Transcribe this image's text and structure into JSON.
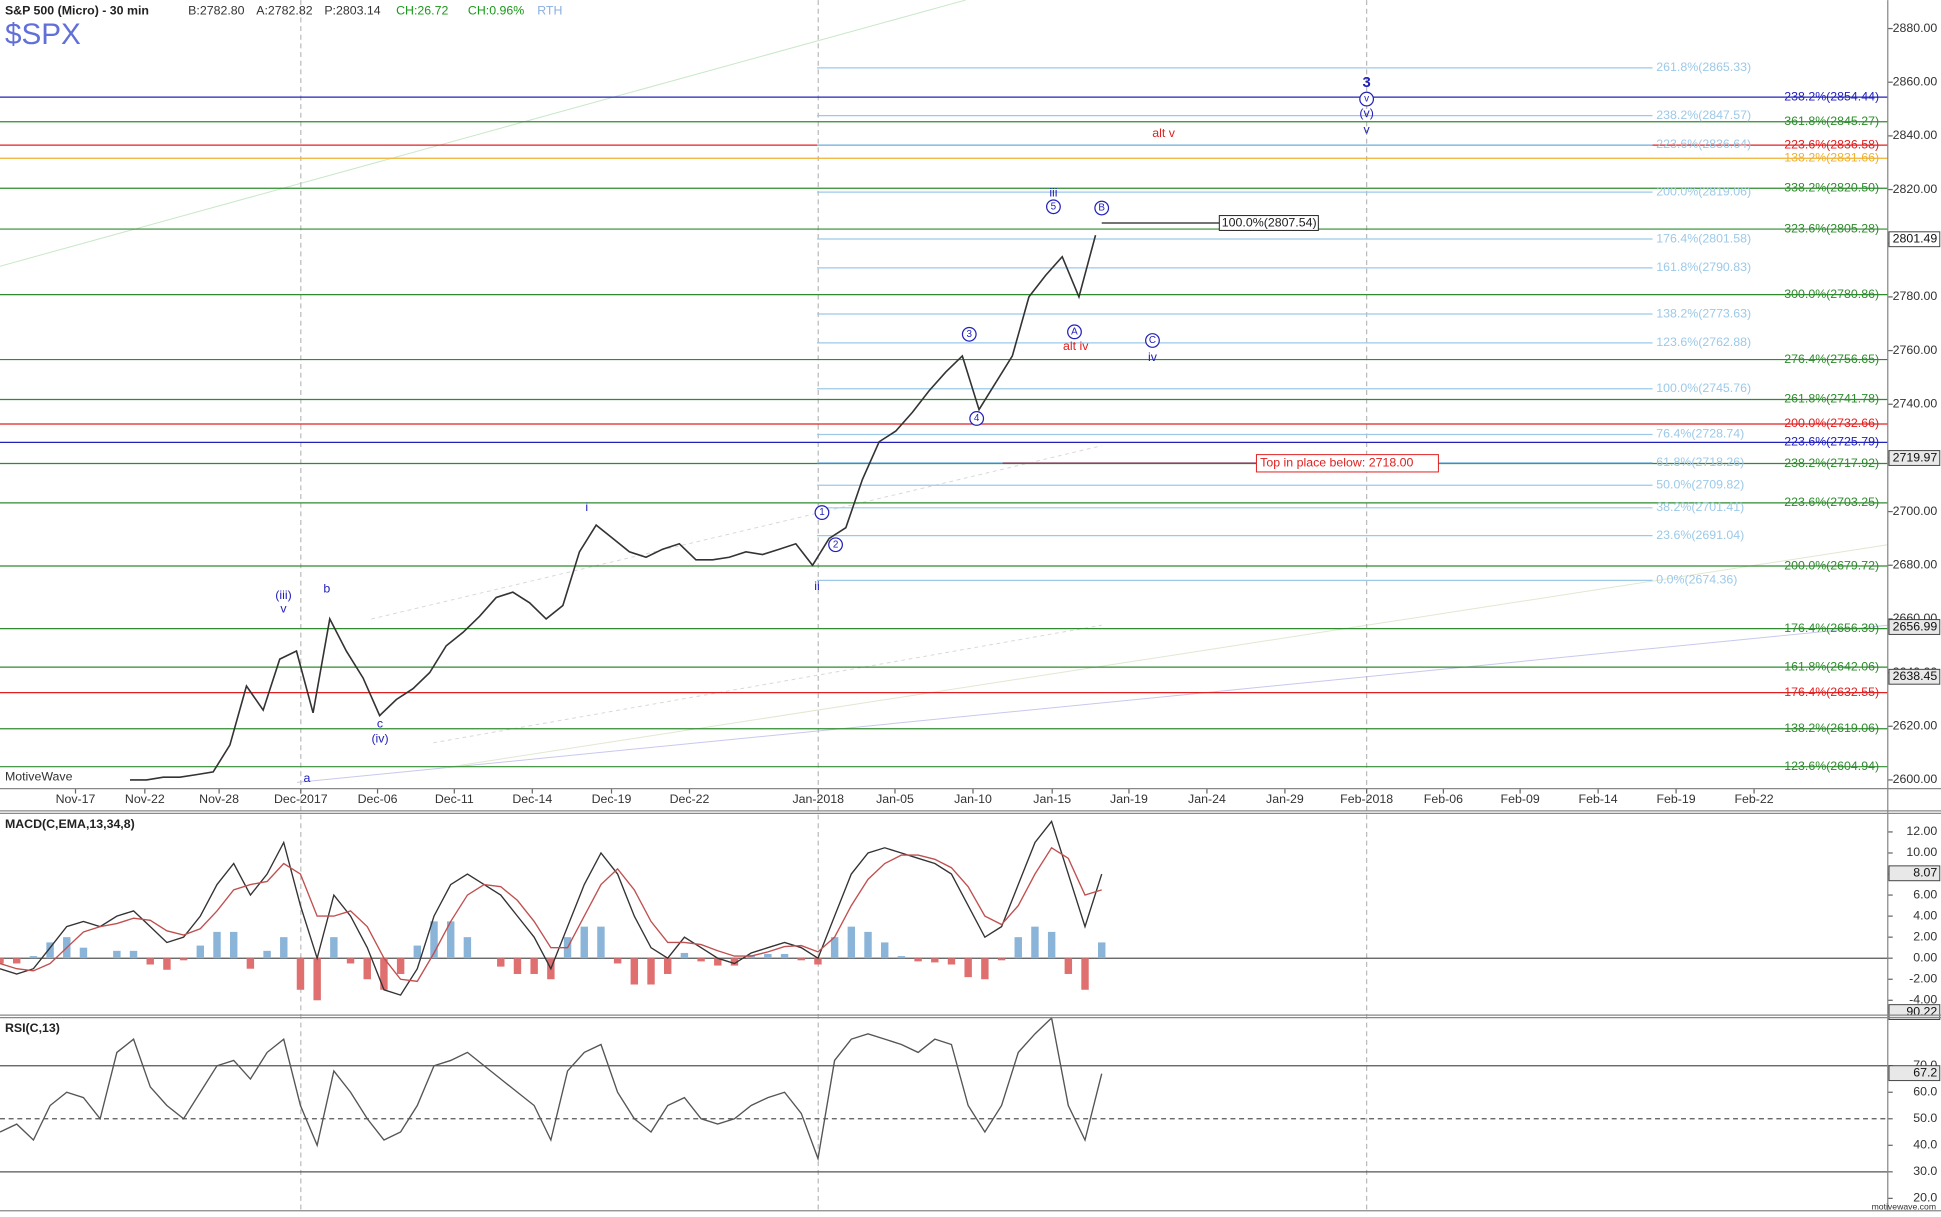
{
  "header": {
    "title": "S&P 500 (Micro) - 30 min",
    "bid": "B:2782.80",
    "ask": "A:2782.82",
    "price": "P:2803.14",
    "change": "CH:26.72",
    "change_pct": "CH:0.96%",
    "session": "RTH",
    "symbol": "$SPX",
    "brand": "MotiveWave",
    "site": "motivewave.com"
  },
  "chart_data": [
    {
      "type": "line",
      "color": "#333333",
      "values": [
        2600,
        2600,
        2601,
        2601,
        2602,
        2603,
        2613,
        2635,
        2626,
        2645,
        2648,
        2625,
        2660,
        2648,
        2638,
        2624,
        2630,
        2634,
        2640,
        2650,
        2655,
        2661,
        2668,
        2670,
        2666,
        2660,
        2665,
        2685,
        2695,
        2690,
        2685,
        2683,
        2686,
        2688,
        2682,
        2682,
        2683,
        2685,
        2684,
        2686,
        2688,
        2680,
        2690,
        2694,
        2712,
        2726,
        2730,
        2737,
        2745,
        2752,
        2758,
        2738,
        2748,
        2758,
        2780,
        2788,
        2795,
        2780,
        2803
      ],
      "ylim": [
        2600,
        2880
      ],
      "yticks": [
        {
          "value": 2600,
          "label": "2600.00"
        },
        {
          "value": 2620,
          "label": "2620.00"
        },
        {
          "value": 2640,
          "label": "2640.00"
        },
        {
          "value": 2660,
          "label": "2660.00"
        },
        {
          "value": 2680,
          "label": "2680.00"
        },
        {
          "value": 2700,
          "label": "2700.00"
        },
        {
          "value": 2720,
          "label": "2720.00"
        },
        {
          "value": 2740,
          "label": "2740.00"
        },
        {
          "value": 2760,
          "label": "2760.00"
        },
        {
          "value": 2780,
          "label": "2780.00"
        },
        {
          "value": 2800,
          "label": "2800.00"
        },
        {
          "value": 2820,
          "label": "2820.00"
        },
        {
          "value": 2840,
          "label": "2840.00"
        },
        {
          "value": 2860,
          "label": "2860.00"
        },
        {
          "value": 2880,
          "label": "2880.00"
        }
      ],
      "price_badges": [
        2801.49,
        2719.97,
        2656.99,
        2638.45
      ],
      "date_labels": [
        "Nov-17",
        "Nov-22",
        "Nov-28",
        "Dec-2017",
        "Dec-06",
        "Dec-11",
        "Dec-14",
        "Dec-19",
        "Dec-22",
        "Jan-2018",
        "Jan-05",
        "Jan-10",
        "Jan-15",
        "Jan-19",
        "Jan-24",
        "Jan-29",
        "Feb-2018",
        "Feb-06",
        "Feb-09",
        "Feb-14",
        "Feb-19",
        "Feb-22"
      ],
      "levels": [
        {
          "label": "238.2%(2854.44)",
          "value": 2854.44,
          "color": "#2222bb"
        },
        {
          "label": "361.8%(2845.27)",
          "value": 2845.27,
          "color": "#2e8b2e"
        },
        {
          "label": "223.6%(2836.58)",
          "value": 2836.58,
          "color": "#e02020"
        },
        {
          "label": "138.2%(2831.66)",
          "value": 2831.66,
          "color": "#f0b030"
        },
        {
          "label": "338.2%(2820.50)",
          "value": 2820.5,
          "color": "#2e8b2e"
        },
        {
          "label": "323.6%(2805.28)",
          "value": 2805.28,
          "color": "#2e8b2e"
        },
        {
          "label": "300.0%(2780.86)",
          "value": 2780.86,
          "color": "#2e8b2e"
        },
        {
          "label": "276.4%(2756.65)",
          "value": 2756.65,
          "color": "#2e8b2e"
        },
        {
          "label": "261.8%(2741.78)",
          "value": 2741.78,
          "color": "#2e8b2e"
        },
        {
          "label": "200.0%(2732.66)",
          "value": 2732.66,
          "color": "#e02020"
        },
        {
          "label": "223.6%(2725.79)",
          "value": 2725.79,
          "color": "#2222bb"
        },
        {
          "label": "238.2%(2717.92)",
          "value": 2717.92,
          "color": "#2e8b2e"
        },
        {
          "label": "223.6%(2703.25)",
          "value": 2703.25,
          "color": "#2e8b2e"
        },
        {
          "label": "200.0%(2679.72)",
          "value": 2679.72,
          "color": "#2e8b2e"
        },
        {
          "label": "176.4%(2656.39)",
          "value": 2656.39,
          "color": "#2e8b2e"
        },
        {
          "label": "161.8%(2642.06)",
          "value": 2642.06,
          "color": "#2e8b2e"
        },
        {
          "label": "176.4%(2632.55)",
          "value": 2632.55,
          "color": "#e02020"
        },
        {
          "label": "138.2%(2619.06)",
          "value": 2619.06,
          "color": "#2e8b2e"
        },
        {
          "label": "123.6%(2604.94)",
          "value": 2604.94,
          "color": "#2e8b2e"
        },
        {
          "label": "261.8%(2865.33)",
          "value": 2865.33,
          "color": "#9cc9e8"
        },
        {
          "label": "238.2%(2847.57)",
          "value": 2847.57,
          "color": "#9cc9e8"
        },
        {
          "label": "223.6%(2836.64)",
          "value": 2836.64,
          "color": "#9cc9e8"
        },
        {
          "label": "200.0%(2819.06)",
          "value": 2819.06,
          "color": "#9cc9e8"
        },
        {
          "label": "176.4%(2801.58)",
          "value": 2801.58,
          "color": "#9cc9e8"
        },
        {
          "label": "161.8%(2790.83)",
          "value": 2790.83,
          "color": "#9cc9e8"
        },
        {
          "label": "138.2%(2773.63)",
          "value": 2773.63,
          "color": "#9cc9e8"
        },
        {
          "label": "123.6%(2762.88)",
          "value": 2762.88,
          "color": "#9cc9e8"
        },
        {
          "label": "100.0%(2745.76)",
          "value": 2745.76,
          "color": "#9cc9e8"
        },
        {
          "label": "76.4%(2728.74)",
          "value": 2728.74,
          "color": "#9cc9e8"
        },
        {
          "label": "61.8%(2718.26)",
          "value": 2718.26,
          "color": "#9cc9e8"
        },
        {
          "label": "50.0%(2709.82)",
          "value": 2709.82,
          "color": "#9cc9e8"
        },
        {
          "label": "38.2%(2701.41)",
          "value": 2701.41,
          "color": "#9cc9e8"
        },
        {
          "label": "23.6%(2691.04)",
          "value": 2691.04,
          "color": "#9cc9e8"
        },
        {
          "label": "0.0%(2674.36)",
          "value": 2674.36,
          "color": "#9cc9e8"
        }
      ],
      "annotations": [
        {
          "label": "100.0%(2807.54)",
          "value": 2807.54,
          "color": "#222222"
        },
        {
          "label": "Top in place below: 2718.00",
          "value": 2718.0,
          "color": "#e02020"
        }
      ],
      "wave_labels": [
        {
          "label": "(iii)",
          "color": "#2222bb"
        },
        {
          "label": "v",
          "color": "#2222bb"
        },
        {
          "label": "b",
          "color": "#2222bb"
        },
        {
          "label": "a",
          "color": "#2222bb"
        },
        {
          "label": "c",
          "color": "#2222bb"
        },
        {
          "label": "(iv)",
          "color": "#2222bb"
        },
        {
          "label": "i",
          "color": "#2222bb"
        },
        {
          "label": "ii",
          "color": "#2222bb"
        },
        {
          "label": "1",
          "color": "#2222bb",
          "circled": true
        },
        {
          "label": "2",
          "color": "#2222bb",
          "circled": true
        },
        {
          "label": "3",
          "color": "#2222bb",
          "circled": true
        },
        {
          "label": "4",
          "color": "#2222bb",
          "circled": true
        },
        {
          "label": "iii",
          "color": "#2222bb"
        },
        {
          "label": "5",
          "color": "#2222bb",
          "circled": true
        },
        {
          "label": "A",
          "color": "#2222bb",
          "circled": true
        },
        {
          "label": "alt iv",
          "color": "#e02020"
        },
        {
          "label": "B",
          "color": "#2222bb",
          "circled": true
        },
        {
          "label": "C",
          "color": "#2222bb",
          "circled": true
        },
        {
          "label": "iv",
          "color": "#2222bb"
        },
        {
          "label": "3",
          "color": "#2222bb",
          "bold": true
        },
        {
          "label": "v",
          "color": "#2222bb",
          "circled": true
        },
        {
          "label": "(v)",
          "color": "#2222bb"
        },
        {
          "label": "v",
          "color": "#2222bb"
        },
        {
          "label": "alt v",
          "color": "#e02020"
        }
      ]
    },
    {
      "type": "macd",
      "title": "MACD(C,EMA,13,34,8)",
      "series": [
        {
          "color": "#333333",
          "values": [
            -1,
            -1.5,
            -1,
            1,
            3,
            3.5,
            3,
            4,
            4.5,
            3,
            1.5,
            2,
            4,
            7,
            9,
            6,
            8,
            11,
            5,
            0,
            6,
            4,
            1,
            -3,
            -3.5,
            -1,
            4,
            7,
            8,
            7,
            6,
            4,
            2,
            -1,
            3,
            7,
            10,
            8,
            4,
            1,
            0,
            2,
            1,
            0,
            -0.5,
            0.5,
            1,
            1.5,
            1,
            0,
            4,
            8,
            10,
            10.5,
            10,
            9.5,
            9,
            8,
            5,
            2,
            3,
            7,
            11,
            13,
            8,
            3,
            8
          ]
        },
        {
          "color": "#c05050",
          "values": [
            -0.5,
            -1,
            -1.2,
            -0.5,
            1,
            2.5,
            3,
            3.3,
            3.8,
            3.6,
            2.6,
            2.2,
            2.8,
            4.5,
            6.5,
            7,
            7.3,
            9,
            8,
            4,
            4,
            4.5,
            3,
            0,
            -2,
            -2.2,
            0.5,
            3.5,
            6,
            7,
            6.8,
            5.5,
            3.5,
            1,
            1,
            4,
            7,
            8.5,
            6.5,
            3.5,
            1.5,
            1.5,
            1.3,
            0.7,
            0.2,
            0.2,
            0.6,
            1.1,
            1.2,
            0.6,
            2,
            5,
            7.5,
            9,
            9.8,
            9.8,
            9.4,
            8.6,
            6.8,
            4,
            3.2,
            5,
            8,
            10.5,
            9.5,
            6,
            6.5
          ]
        }
      ],
      "histogram": {
        "positive_color": "#8ab4d8",
        "negative_color": "#e07070",
        "values": [
          -0.5,
          -0.5,
          0.2,
          1.5,
          2,
          1,
          0,
          0.7,
          0.7,
          -0.6,
          -1.1,
          -0.2,
          1.2,
          2.5,
          2.5,
          -1,
          0.7,
          2,
          -3,
          -4,
          2,
          -0.5,
          -2,
          -3,
          -1.5,
          1.2,
          3.5,
          3.5,
          2,
          0,
          -0.8,
          -1.5,
          -1.5,
          -2,
          2,
          3,
          3,
          -0.5,
          -2.5,
          -2.5,
          -1.5,
          0.5,
          -0.3,
          -0.7,
          -0.7,
          0.3,
          0.4,
          0.4,
          -0.2,
          -0.6,
          2,
          3,
          2.5,
          1.5,
          0.2,
          -0.3,
          -0.4,
          -0.6,
          -1.8,
          -2,
          -0.2,
          2,
          3,
          2.5,
          -1.5,
          -3,
          1.5
        ]
      },
      "ylim": [
        -4,
        12
      ],
      "yticks": [
        {
          "value": -4,
          "label": "-4.00"
        },
        {
          "value": -2,
          "label": "-2.00"
        },
        {
          "value": 0,
          "label": "0.00"
        },
        {
          "value": 2,
          "label": "2.00"
        },
        {
          "value": 4,
          "label": "4.00"
        },
        {
          "value": 6,
          "label": "6.00"
        },
        {
          "value": 8,
          "label": "8.00"
        },
        {
          "value": 10,
          "label": "10.00"
        },
        {
          "value": 12,
          "label": "12.00"
        }
      ],
      "badges": [
        8.07
      ],
      "guide_levels": [
        0
      ]
    },
    {
      "type": "rsi",
      "title": "RSI(C,13)",
      "color": "#555555",
      "values": [
        45,
        48,
        42,
        55,
        60,
        58,
        50,
        75,
        80,
        62,
        55,
        50,
        60,
        70,
        72,
        65,
        75,
        80,
        55,
        40,
        68,
        60,
        50,
        42,
        45,
        55,
        70,
        72,
        75,
        70,
        65,
        60,
        55,
        42,
        68,
        75,
        78,
        60,
        50,
        45,
        55,
        58,
        50,
        48,
        50,
        55,
        58,
        60,
        52,
        35,
        72,
        80,
        82,
        80,
        78,
        75,
        80,
        78,
        55,
        45,
        55,
        75,
        82,
        88,
        55,
        42,
        67
      ],
      "ylim": [
        20,
        90
      ],
      "yticks": [
        {
          "value": 20,
          "label": "20.0"
        },
        {
          "value": 30,
          "label": "30.0"
        },
        {
          "value": 40,
          "label": "40.0"
        },
        {
          "value": 50,
          "label": "50.0"
        },
        {
          "value": 60,
          "label": "60.0"
        },
        {
          "value": 70,
          "label": "70.0"
        }
      ],
      "badges": [
        90.22,
        67.2
      ],
      "guide_levels": [
        70,
        50,
        30
      ]
    }
  ]
}
